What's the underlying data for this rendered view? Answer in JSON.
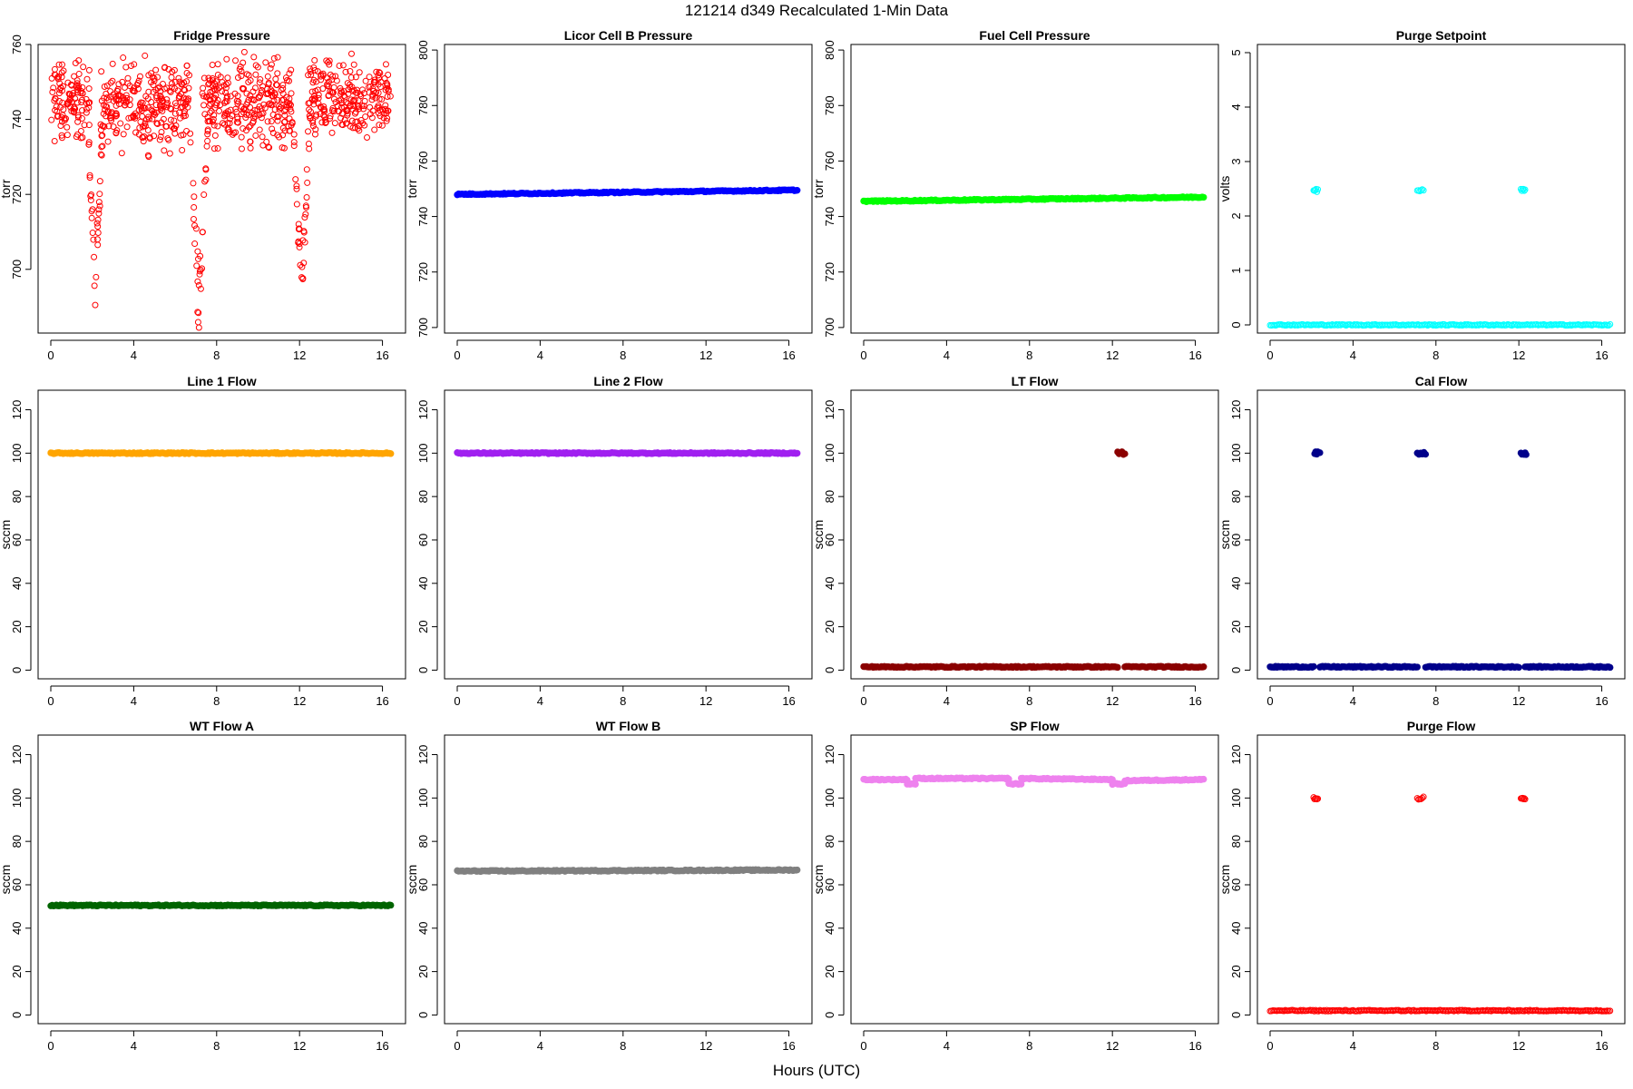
{
  "figure": {
    "title": "121214   d349   Recalculated 1-Min Data",
    "xlabel": "Hours (UTC)"
  },
  "chart_data": [
    {
      "type": "scatter",
      "title": "Fridge Pressure",
      "ylabel": "torr",
      "color": "#ff0000",
      "marker": "open-circle",
      "xlim": [
        0,
        16.5
      ],
      "xticks": [
        0,
        4,
        8,
        12,
        16
      ],
      "ylim": [
        683,
        760
      ],
      "yticks": [
        700,
        720,
        740,
        760
      ],
      "series": [
        {
          "segments": [
            {
              "kind": "noise",
              "x": [
                0,
                1.9
              ],
              "center": 745,
              "spread": 8
            },
            {
              "kind": "noise",
              "x": [
                2.4,
                6.7
              ],
              "center": 744,
              "spread": 9
            },
            {
              "kind": "noise",
              "x": [
                7.3,
                11.7
              ],
              "center": 744,
              "spread": 9
            },
            {
              "kind": "noise",
              "x": [
                12.4,
                16.4
              ],
              "center": 745,
              "spread": 8
            }
          ],
          "dips": [
            {
              "x": [
                1.8,
                2.5
              ],
              "min": 687
            },
            {
              "x": [
                6.7,
                7.6
              ],
              "min": 684
            },
            {
              "x": [
                11.7,
                12.5
              ],
              "min": 688
            }
          ]
        }
      ]
    },
    {
      "type": "scatter",
      "title": "Licor Cell B Pressure",
      "ylabel": "torr",
      "color": "#0000ff",
      "marker": "filled-circle",
      "xlim": [
        0,
        16.5
      ],
      "xticks": [
        0,
        4,
        8,
        12,
        16
      ],
      "ylim": [
        698,
        802
      ],
      "yticks": [
        700,
        720,
        740,
        760,
        780,
        800
      ],
      "series": [
        {
          "segments": [
            {
              "kind": "line",
              "x": [
                0,
                16.4
              ],
              "y": [
                748,
                749.5
              ]
            }
          ]
        }
      ]
    },
    {
      "type": "scatter",
      "title": "Fuel Cell Pressure",
      "ylabel": "torr",
      "color": "#00ff00",
      "marker": "filled-circle",
      "xlim": [
        0,
        16.5
      ],
      "xticks": [
        0,
        4,
        8,
        12,
        16
      ],
      "ylim": [
        698,
        802
      ],
      "yticks": [
        700,
        720,
        740,
        760,
        780,
        800
      ],
      "series": [
        {
          "segments": [
            {
              "kind": "line",
              "x": [
                0,
                16.4
              ],
              "y": [
                745.5,
                747
              ]
            }
          ]
        }
      ]
    },
    {
      "type": "scatter",
      "title": "Purge Setpoint",
      "ylabel": "volts",
      "color": "#00ffff",
      "marker": "open-circle",
      "xlim": [
        0,
        16.5
      ],
      "xticks": [
        0,
        4,
        8,
        12,
        16
      ],
      "ylim": [
        -0.15,
        5.15
      ],
      "yticks": [
        0,
        1,
        2,
        3,
        4,
        5
      ],
      "series": [
        {
          "segments": [
            {
              "kind": "line",
              "x": [
                0,
                16.4
              ],
              "y": [
                0,
                0
              ]
            },
            {
              "kind": "cluster",
              "x": [
                2.1,
                2.3
              ],
              "y": 2.47
            },
            {
              "kind": "cluster",
              "x": [
                7.1,
                7.4
              ],
              "y": 2.47
            },
            {
              "kind": "cluster",
              "x": [
                12.1,
                12.3
              ],
              "y": 2.47
            }
          ]
        }
      ]
    },
    {
      "type": "scatter",
      "title": "Line 1 Flow",
      "ylabel": "sccm",
      "color": "#ffa500",
      "marker": "filled-circle",
      "xlim": [
        0,
        16.5
      ],
      "xticks": [
        0,
        4,
        8,
        12,
        16
      ],
      "ylim": [
        -4,
        129
      ],
      "yticks": [
        0,
        20,
        40,
        60,
        80,
        100,
        120
      ],
      "series": [
        {
          "segments": [
            {
              "kind": "line",
              "x": [
                0,
                16.4
              ],
              "y": [
                100,
                100
              ]
            }
          ]
        }
      ]
    },
    {
      "type": "scatter",
      "title": "Line 2 Flow",
      "ylabel": "",
      "color": "#a020f0",
      "marker": "filled-circle",
      "xlim": [
        0,
        16.5
      ],
      "xticks": [
        0,
        4,
        8,
        12,
        16
      ],
      "ylim": [
        -4,
        129
      ],
      "yticks": [
        0,
        20,
        40,
        60,
        80,
        100,
        120
      ],
      "series": [
        {
          "segments": [
            {
              "kind": "line",
              "x": [
                0,
                16.4
              ],
              "y": [
                100,
                100
              ]
            }
          ]
        }
      ]
    },
    {
      "type": "scatter",
      "title": "LT Flow",
      "ylabel": "sccm",
      "color": "#8b0000",
      "marker": "filled-circle",
      "xlim": [
        0,
        16.5
      ],
      "xticks": [
        0,
        4,
        8,
        12,
        16
      ],
      "ylim": [
        -4,
        129
      ],
      "yticks": [
        0,
        20,
        40,
        60,
        80,
        100,
        120
      ],
      "series": [
        {
          "segments": [
            {
              "kind": "line",
              "x": [
                0,
                12.25
              ],
              "y": [
                1.5,
                1.5
              ]
            },
            {
              "kind": "line",
              "x": [
                12.6,
                16.4
              ],
              "y": [
                1.5,
                1.5
              ]
            },
            {
              "kind": "cluster",
              "x": [
                12.25,
                12.6
              ],
              "y": 100
            }
          ]
        }
      ]
    },
    {
      "type": "scatter",
      "title": "Cal Flow",
      "ylabel": "sccm",
      "color": "#00008b",
      "marker": "filled-circle",
      "xlim": [
        0,
        16.5
      ],
      "xticks": [
        0,
        4,
        8,
        12,
        16
      ],
      "ylim": [
        -4,
        129
      ],
      "yticks": [
        0,
        20,
        40,
        60,
        80,
        100,
        120
      ],
      "series": [
        {
          "segments": [
            {
              "kind": "line",
              "x": [
                0,
                2.1
              ],
              "y": [
                1.5,
                1.5
              ]
            },
            {
              "kind": "line",
              "x": [
                2.4,
                7.1
              ],
              "y": [
                1.5,
                1.5
              ]
            },
            {
              "kind": "line",
              "x": [
                7.5,
                12.0
              ],
              "y": [
                1.5,
                1.5
              ]
            },
            {
              "kind": "line",
              "x": [
                12.3,
                16.4
              ],
              "y": [
                1.5,
                1.5
              ]
            },
            {
              "kind": "cluster",
              "x": [
                2.15,
                2.4
              ],
              "y": 100
            },
            {
              "kind": "cluster",
              "x": [
                7.1,
                7.5
              ],
              "y": 100
            },
            {
              "kind": "cluster",
              "x": [
                12.1,
                12.35
              ],
              "y": 100
            }
          ]
        }
      ]
    },
    {
      "type": "scatter",
      "title": "WT Flow A",
      "ylabel": "sccm",
      "color": "#006400",
      "marker": "filled-circle",
      "xlim": [
        0,
        16.5
      ],
      "xticks": [
        0,
        4,
        8,
        12,
        16
      ],
      "ylim": [
        -4,
        129
      ],
      "yticks": [
        0,
        20,
        40,
        60,
        80,
        100,
        120
      ],
      "series": [
        {
          "segments": [
            {
              "kind": "line",
              "x": [
                0,
                16.4
              ],
              "y": [
                50.5,
                50.5
              ]
            }
          ]
        }
      ]
    },
    {
      "type": "scatter",
      "title": "WT Flow B",
      "ylabel": "sccm",
      "color": "#808080",
      "marker": "filled-circle",
      "xlim": [
        0,
        16.5
      ],
      "xticks": [
        0,
        4,
        8,
        12,
        16
      ],
      "ylim": [
        -4,
        129
      ],
      "yticks": [
        0,
        20,
        40,
        60,
        80,
        100,
        120
      ],
      "series": [
        {
          "segments": [
            {
              "kind": "line",
              "x": [
                0,
                16.4
              ],
              "y": [
                66.3,
                66.8
              ]
            }
          ]
        }
      ]
    },
    {
      "type": "scatter",
      "title": "SP Flow",
      "ylabel": "sccm",
      "color": "#ee82ee",
      "marker": "filled-circle",
      "xlim": [
        0,
        16.5
      ],
      "xticks": [
        0,
        4,
        8,
        12,
        16
      ],
      "ylim": [
        -4,
        129
      ],
      "yticks": [
        0,
        20,
        40,
        60,
        80,
        100,
        120
      ],
      "series": [
        {
          "segments": [
            {
              "kind": "line",
              "x": [
                0,
                2.1
              ],
              "y": [
                108.5,
                108.5
              ]
            },
            {
              "kind": "line",
              "x": [
                2.1,
                2.5
              ],
              "y": [
                106.5,
                106.5
              ]
            },
            {
              "kind": "line",
              "x": [
                2.5,
                7.0
              ],
              "y": [
                109,
                109
              ]
            },
            {
              "kind": "line",
              "x": [
                7.0,
                7.6
              ],
              "y": [
                106.5,
                106.5
              ]
            },
            {
              "kind": "line",
              "x": [
                7.6,
                12.0
              ],
              "y": [
                109,
                108.5
              ]
            },
            {
              "kind": "line",
              "x": [
                12.0,
                12.6
              ],
              "y": [
                106.5,
                106.5
              ]
            },
            {
              "kind": "line",
              "x": [
                12.6,
                16.4
              ],
              "y": [
                108,
                108.5
              ]
            }
          ]
        }
      ]
    },
    {
      "type": "scatter",
      "title": "Purge Flow",
      "ylabel": "sccm",
      "color": "#ff0000",
      "marker": "open-circle",
      "xlim": [
        0,
        16.5
      ],
      "xticks": [
        0,
        4,
        8,
        12,
        16
      ],
      "ylim": [
        -4,
        129
      ],
      "yticks": [
        0,
        20,
        40,
        60,
        80,
        100,
        120
      ],
      "series": [
        {
          "segments": [
            {
              "kind": "line",
              "x": [
                0,
                16.4
              ],
              "y": [
                2,
                2
              ]
            },
            {
              "kind": "cluster",
              "x": [
                2.1,
                2.3
              ],
              "y": 100
            },
            {
              "kind": "cluster",
              "x": [
                7.1,
                7.4
              ],
              "y": 100
            },
            {
              "kind": "cluster",
              "x": [
                12.1,
                12.3
              ],
              "y": 100
            }
          ]
        }
      ]
    }
  ]
}
